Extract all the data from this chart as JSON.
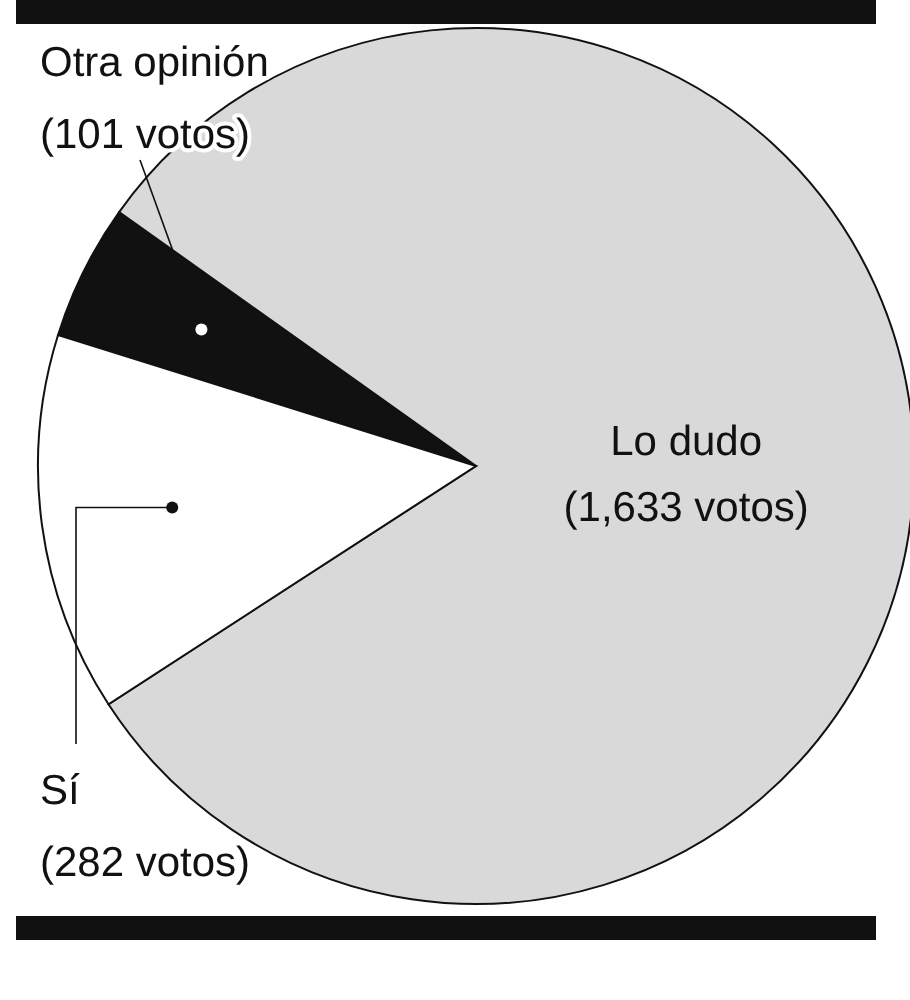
{
  "chart_data": {
    "type": "pie",
    "categories": [
      "Otra opinión",
      "Lo dudo",
      "Sí"
    ],
    "values": [
      101,
      1633,
      282
    ],
    "colors": [
      "#111111",
      "#d9d9d9",
      "#ffffff"
    ],
    "value_labels": [
      "(101 votos)",
      "(1,633 votos)",
      "(282 votos)"
    ],
    "legend": false
  }
}
